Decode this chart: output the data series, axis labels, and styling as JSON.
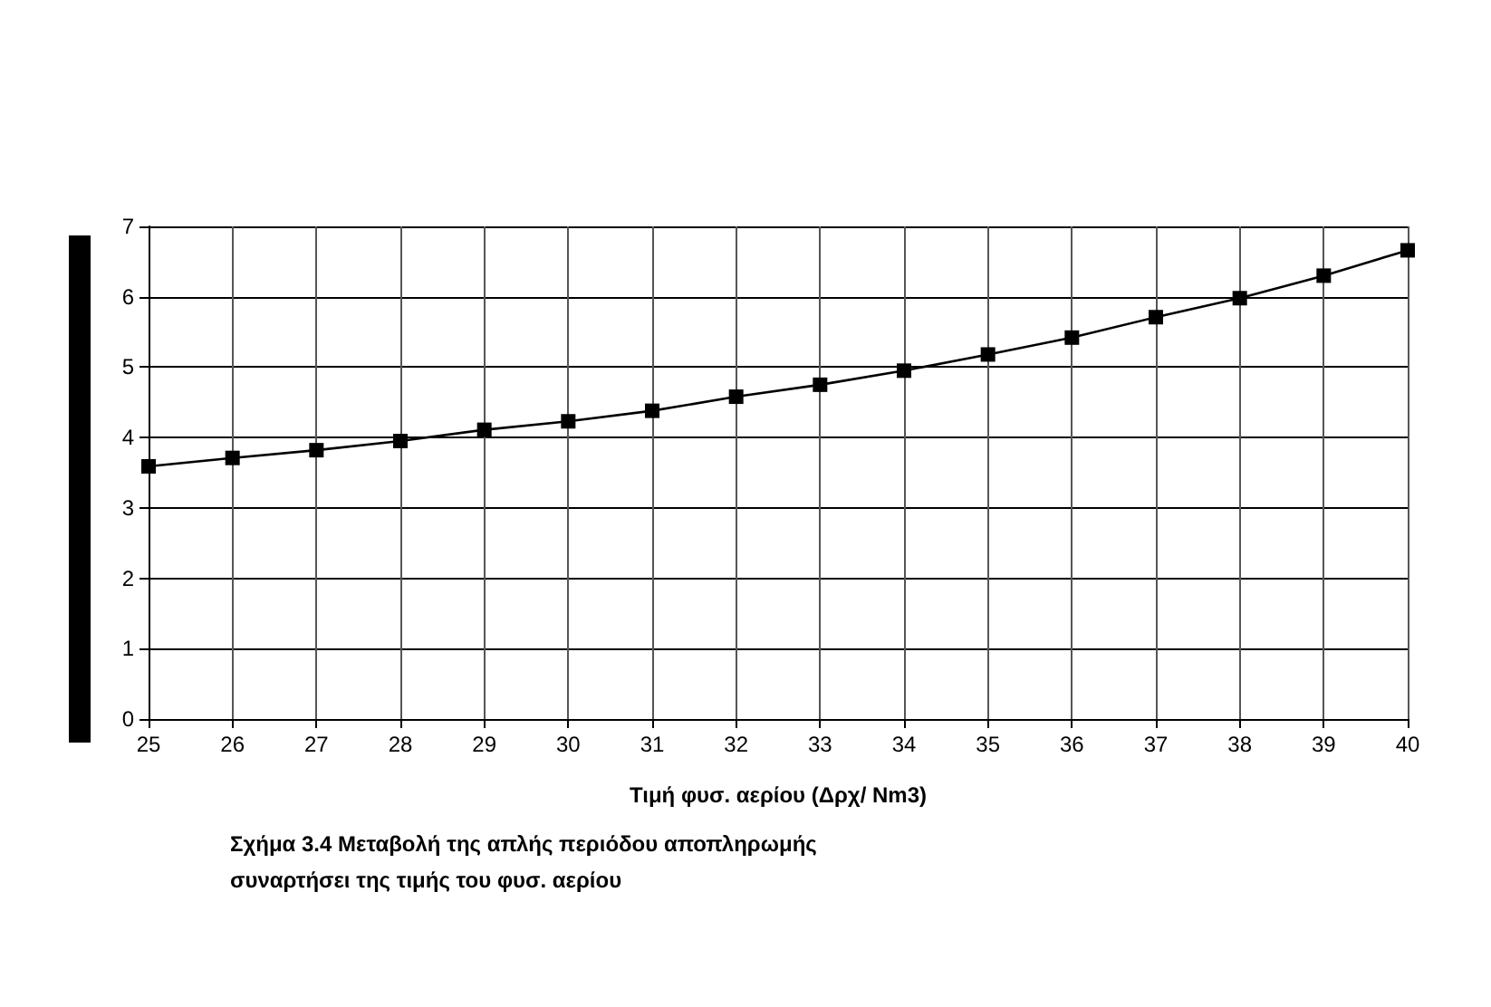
{
  "chart_data": {
    "type": "line",
    "categories": [
      "25",
      "26",
      "27",
      "28",
      "29",
      "30",
      "31",
      "32",
      "33",
      "34",
      "35",
      "36",
      "37",
      "38",
      "39",
      "40"
    ],
    "series": [
      {
        "color": "#000000",
        "values": [
          3.59,
          3.71,
          3.82,
          3.95,
          4.11,
          4.23,
          4.38,
          4.58,
          4.75,
          4.95,
          5.18,
          5.42,
          5.71,
          5.98,
          6.3,
          6.66
        ]
      }
    ],
    "xlabel": "Τιμή φυσ. αερίου (Δρχ/ Nm3)",
    "ylim": [
      0,
      7
    ],
    "yticks": [
      0,
      1,
      2,
      3,
      4,
      5,
      6,
      7
    ],
    "grid": true,
    "marker": "square",
    "line_style": "solid",
    "annotations": [
      "Σχήμα 3.4  Μεταβολή της απλής περιόδου αποπληρωμής συναρτήσει της τιμής του φυσ. αερίου"
    ]
  }
}
